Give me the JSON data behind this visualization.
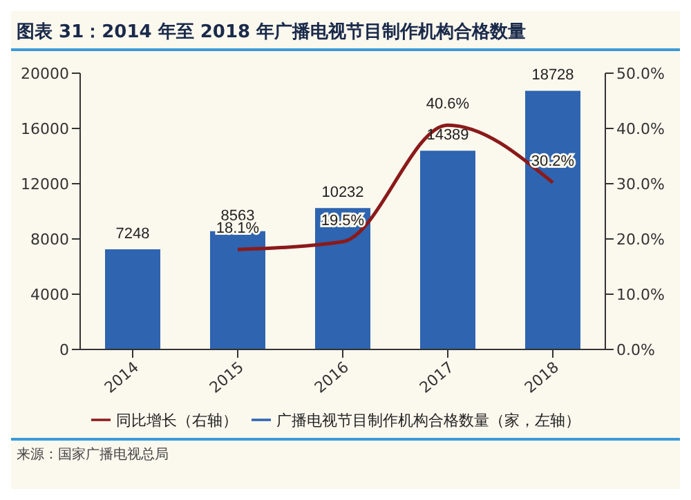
{
  "chart_data": {
    "type": "bar",
    "title": "图表 31：2014 年至 2018 年广播电视节目制作机构合格数量",
    "categories": [
      "2014",
      "2015",
      "2016",
      "2017",
      "2018"
    ],
    "series": [
      {
        "name": "广播电视节目制作机构合格数量（家，左轴）",
        "color": "#2e64b0",
        "values": [
          7248,
          8563,
          10232,
          14389,
          18728
        ],
        "value_labels": [
          "7248",
          "8563",
          "10232",
          "14389",
          "18728"
        ]
      },
      {
        "name": "同比增长（右轴）",
        "type": "line",
        "axis": "y2",
        "color": "#8b1a1a",
        "values": [
          null,
          18.1,
          19.5,
          40.6,
          30.2
        ],
        "value_labels": [
          null,
          "18.1%",
          "19.5%",
          "40.6%",
          "30.2%"
        ]
      }
    ],
    "ylim": [
      0,
      20000
    ],
    "yticks": [
      0,
      4000,
      8000,
      12000,
      16000,
      20000
    ],
    "y2lim": [
      0,
      50
    ],
    "y2ticks": [
      {
        "value": 0,
        "label": "0.0%"
      },
      {
        "value": 10,
        "label": "10.0%"
      },
      {
        "value": 20,
        "label": "20.0%"
      },
      {
        "value": 30,
        "label": "30.0%"
      },
      {
        "value": 40,
        "label": "40.0%"
      },
      {
        "value": 50,
        "label": "50.0%"
      }
    ],
    "legend": "bottom",
    "grid": false,
    "marker": "none",
    "annotations": [
      "来源：国家广播电视总局"
    ]
  }
}
